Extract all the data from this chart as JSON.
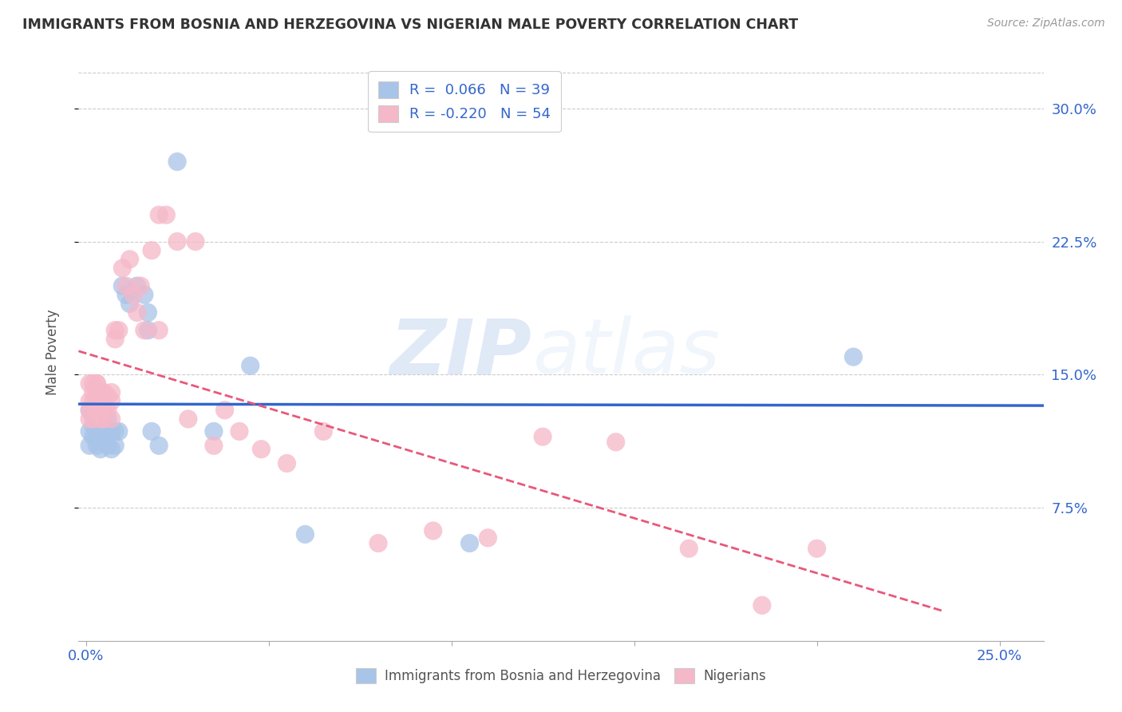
{
  "title": "IMMIGRANTS FROM BOSNIA AND HERZEGOVINA VS NIGERIAN MALE POVERTY CORRELATION CHART",
  "source": "Source: ZipAtlas.com",
  "ylabel": "Male Poverty",
  "yticks_labels": [
    "7.5%",
    "15.0%",
    "22.5%",
    "30.0%"
  ],
  "ytick_vals": [
    0.075,
    0.15,
    0.225,
    0.3
  ],
  "ymin": 0.0,
  "ymax": 0.325,
  "xmin": -0.002,
  "xmax": 0.262,
  "xtick_positions": [
    0.0,
    0.05,
    0.1,
    0.15,
    0.2,
    0.25
  ],
  "legend1_R": "0.066",
  "legend1_N": "39",
  "legend2_R": "-0.220",
  "legend2_N": "54",
  "blue_color": "#a8c4e8",
  "pink_color": "#f5b8c8",
  "line_blue": "#3366cc",
  "line_pink": "#e8587a",
  "watermark_zip": "ZIP",
  "watermark_atlas": "atlas",
  "legend_label1": "Immigrants from Bosnia and Herzegovina",
  "legend_label2": "Nigerians",
  "bosnia_x": [
    0.001,
    0.001,
    0.001,
    0.002,
    0.002,
    0.002,
    0.003,
    0.003,
    0.003,
    0.003,
    0.004,
    0.004,
    0.004,
    0.005,
    0.005,
    0.005,
    0.006,
    0.006,
    0.006,
    0.007,
    0.007,
    0.008,
    0.008,
    0.009,
    0.01,
    0.011,
    0.012,
    0.014,
    0.016,
    0.017,
    0.017,
    0.018,
    0.02,
    0.025,
    0.035,
    0.06,
    0.105,
    0.21,
    0.045
  ],
  "bosnia_y": [
    0.13,
    0.118,
    0.11,
    0.128,
    0.121,
    0.115,
    0.11,
    0.125,
    0.115,
    0.12,
    0.12,
    0.115,
    0.108,
    0.125,
    0.118,
    0.112,
    0.118,
    0.11,
    0.125,
    0.118,
    0.108,
    0.118,
    0.11,
    0.118,
    0.2,
    0.195,
    0.19,
    0.2,
    0.195,
    0.185,
    0.175,
    0.118,
    0.11,
    0.27,
    0.118,
    0.06,
    0.055,
    0.16,
    0.155
  ],
  "nigeria_x": [
    0.001,
    0.001,
    0.001,
    0.001,
    0.002,
    0.002,
    0.002,
    0.002,
    0.003,
    0.003,
    0.003,
    0.003,
    0.004,
    0.004,
    0.004,
    0.005,
    0.005,
    0.005,
    0.006,
    0.006,
    0.007,
    0.007,
    0.007,
    0.008,
    0.008,
    0.009,
    0.01,
    0.011,
    0.012,
    0.013,
    0.014,
    0.015,
    0.016,
    0.018,
    0.02,
    0.025,
    0.03,
    0.035,
    0.042,
    0.048,
    0.055,
    0.065,
    0.08,
    0.095,
    0.11,
    0.125,
    0.145,
    0.165,
    0.185,
    0.2,
    0.022,
    0.028,
    0.02,
    0.038
  ],
  "nigeria_y": [
    0.145,
    0.135,
    0.13,
    0.125,
    0.145,
    0.14,
    0.135,
    0.125,
    0.145,
    0.138,
    0.132,
    0.145,
    0.14,
    0.135,
    0.125,
    0.14,
    0.132,
    0.125,
    0.138,
    0.13,
    0.14,
    0.135,
    0.125,
    0.175,
    0.17,
    0.175,
    0.21,
    0.2,
    0.215,
    0.195,
    0.185,
    0.2,
    0.175,
    0.22,
    0.175,
    0.225,
    0.225,
    0.11,
    0.118,
    0.108,
    0.1,
    0.118,
    0.055,
    0.062,
    0.058,
    0.115,
    0.112,
    0.052,
    0.02,
    0.052,
    0.24,
    0.125,
    0.24,
    0.13
  ]
}
